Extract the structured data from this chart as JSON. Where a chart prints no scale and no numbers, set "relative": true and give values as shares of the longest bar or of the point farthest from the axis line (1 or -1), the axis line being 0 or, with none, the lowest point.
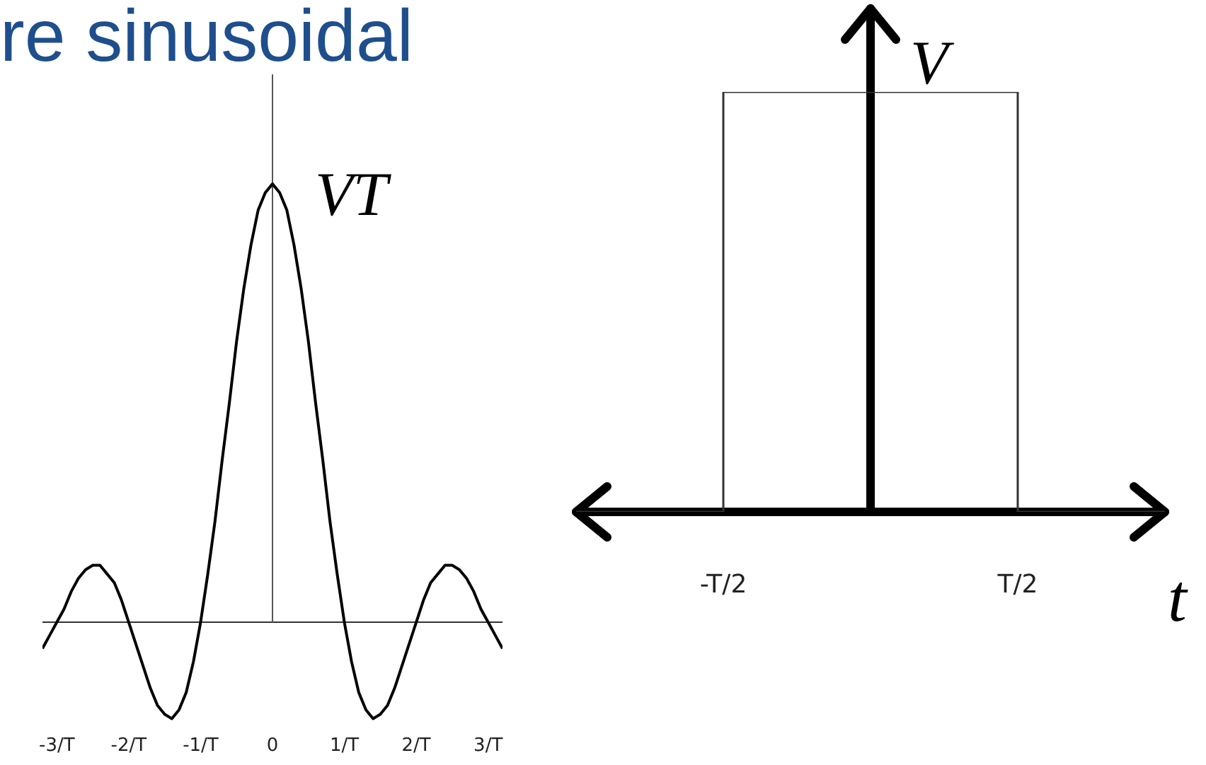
{
  "chart_data": [
    {
      "type": "line",
      "title": "re sinusoidal",
      "relative": true,
      "marker": "none",
      "categories": [
        null,
        null,
        "-3/T",
        null,
        null,
        null,
        null,
        null,
        null,
        null,
        null,
        null,
        "-2/T",
        null,
        null,
        null,
        null,
        null,
        null,
        null,
        null,
        null,
        "-1/T",
        null,
        null,
        null,
        null,
        null,
        null,
        null,
        null,
        null,
        "0",
        null,
        null,
        null,
        null,
        null,
        null,
        null,
        null,
        null,
        "1/T",
        null,
        null,
        null,
        null,
        null,
        null,
        null,
        null,
        null,
        "2/T",
        null,
        null,
        null,
        null,
        null,
        null,
        null,
        null,
        null,
        "3/T",
        null,
        null
      ],
      "series": [
        {
          "color": "#000000",
          "values": [
            -0.06,
            -0.03,
            0,
            0.03,
            0.07,
            0.1,
            0.12,
            0.13,
            0.13,
            0.11,
            0.09,
            0.05,
            0,
            -0.05,
            -0.1,
            -0.15,
            -0.19,
            -0.21,
            -0.22,
            -0.2,
            -0.16,
            -0.09,
            0,
            0.11,
            0.23,
            0.37,
            0.5,
            0.64,
            0.76,
            0.86,
            0.94,
            0.98,
            1,
            0.98,
            0.94,
            0.86,
            0.76,
            0.64,
            0.5,
            0.37,
            0.23,
            0.11,
            0,
            -0.09,
            -0.16,
            -0.2,
            -0.22,
            -0.21,
            -0.19,
            -0.15,
            -0.1,
            -0.05,
            0,
            0.05,
            0.09,
            0.11,
            0.13,
            0.13,
            0.12,
            0.1,
            0.07,
            0.03,
            0,
            -0.03,
            -0.06
          ]
        }
      ],
      "annotations": [
        {
          "text": "VT",
          "x": "0",
          "y": 1
        }
      ]
    },
    {
      "type": "step",
      "relative": true,
      "marker": "none",
      "xlabel": "t",
      "ylabel": "V",
      "categories": [
        null,
        "-T/2",
        null,
        "T/2",
        null
      ],
      "series": [
        {
          "color": "#333333",
          "values": [
            0,
            1,
            1,
            0,
            0
          ]
        }
      ]
    }
  ]
}
